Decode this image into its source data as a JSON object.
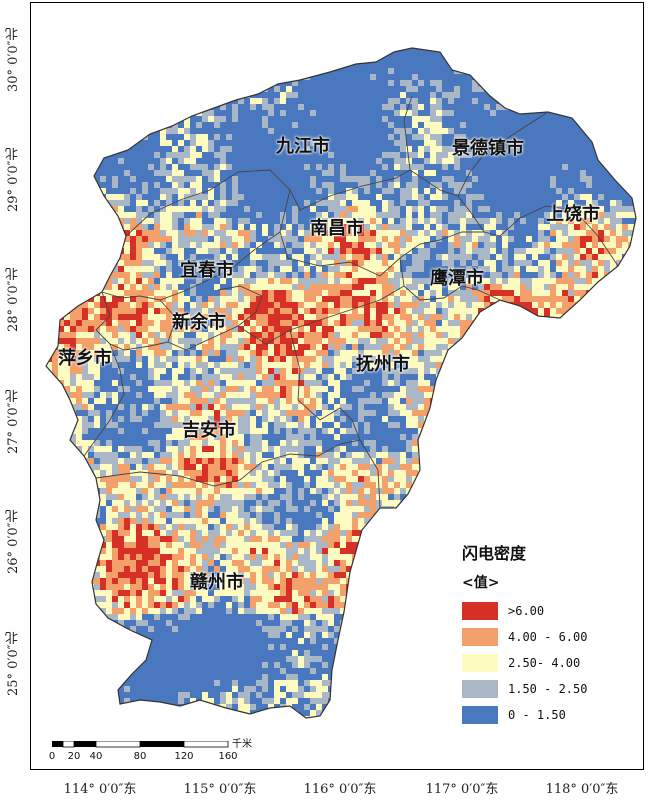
{
  "map": {
    "legend": {
      "title": "闪电密度",
      "subtitle": "<值>",
      "classes": [
        {
          "label": ">6.00",
          "color": "#d73027"
        },
        {
          "label": "4.00 - 6.00",
          "color": "#f4a06a"
        },
        {
          "label": "2.50- 4.00",
          "color": "#fdfbbf"
        },
        {
          "label": "1.50 - 2.50",
          "color": "#a9b7c6"
        },
        {
          "label": "0 - 1.50",
          "color": "#4a78be"
        }
      ]
    },
    "cities": [
      {
        "key": "jiujiang",
        "name": "九江市"
      },
      {
        "key": "jingdezhen",
        "name": "景德镇市"
      },
      {
        "key": "shangrao",
        "name": "上饶市"
      },
      {
        "key": "nanchang",
        "name": "南昌市"
      },
      {
        "key": "yichun",
        "name": "宜春市"
      },
      {
        "key": "yingtan",
        "name": "鹰潭市"
      },
      {
        "key": "xinyu",
        "name": "新余市"
      },
      {
        "key": "pingxiang",
        "name": "萍乡市"
      },
      {
        "key": "fuzhou",
        "name": "抚州市"
      },
      {
        "key": "jian",
        "name": "吉安市"
      },
      {
        "key": "ganzhou",
        "name": "赣州市"
      }
    ],
    "lat_labels": [
      "30° 0′0″北",
      "29° 0′0″北",
      "28° 0′0″北",
      "27° 0′0″北",
      "26° 0′0″北",
      "25° 0′0″北"
    ],
    "lon_labels": [
      "114° 0′0″东",
      "115° 0′0″东",
      "116° 0′0″东",
      "117° 0′0″东",
      "118° 0′0″东"
    ],
    "scalebar": {
      "ticks": [
        "0",
        "20",
        "40",
        "80",
        "120",
        "160"
      ],
      "unit": "千米"
    }
  }
}
